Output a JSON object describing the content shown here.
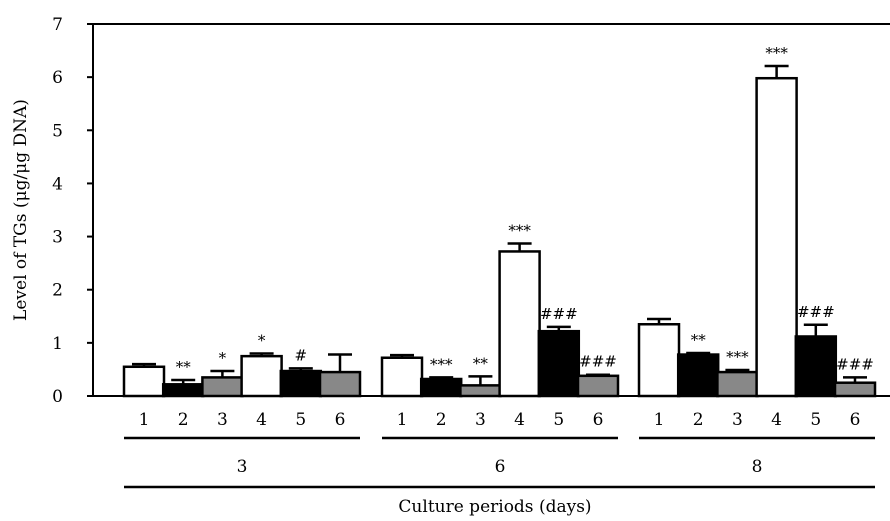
{
  "chart_data": {
    "type": "bar",
    "ylabel": "Level of TGs (μg/μg DNA)",
    "xlabel": "Culture periods (days)",
    "ylim": [
      0,
      7
    ],
    "yticks": [
      "0",
      "1",
      "2",
      "3",
      "4",
      "5",
      "6",
      "7"
    ],
    "bar_labels": [
      "1",
      "2",
      "3",
      "4",
      "5",
      "6"
    ],
    "bar_fills": [
      "#ffffff",
      "#000000",
      "#888888",
      "#ffffff",
      "#000000",
      "#888888"
    ],
    "groups": [
      {
        "label": "3",
        "values": [
          0.55,
          0.22,
          0.35,
          0.75,
          0.47,
          0.45
        ],
        "errors": [
          0.05,
          0.08,
          0.12,
          0.05,
          0.05,
          0.33
        ],
        "annotations": [
          "",
          "**",
          "*",
          "*",
          "#",
          ""
        ]
      },
      {
        "label": "6",
        "values": [
          0.72,
          0.32,
          0.2,
          2.72,
          1.22,
          0.38
        ],
        "errors": [
          0.05,
          0.03,
          0.17,
          0.15,
          0.08,
          0.02
        ],
        "annotations": [
          "",
          "***",
          "**",
          "***",
          "###",
          "###"
        ]
      },
      {
        "label": "8",
        "values": [
          1.35,
          0.78,
          0.45,
          5.98,
          1.12,
          0.25
        ],
        "errors": [
          0.1,
          0.03,
          0.04,
          0.23,
          0.22,
          0.1
        ],
        "annotations": [
          "",
          "**",
          "***",
          "***",
          "###",
          "###"
        ]
      }
    ]
  }
}
